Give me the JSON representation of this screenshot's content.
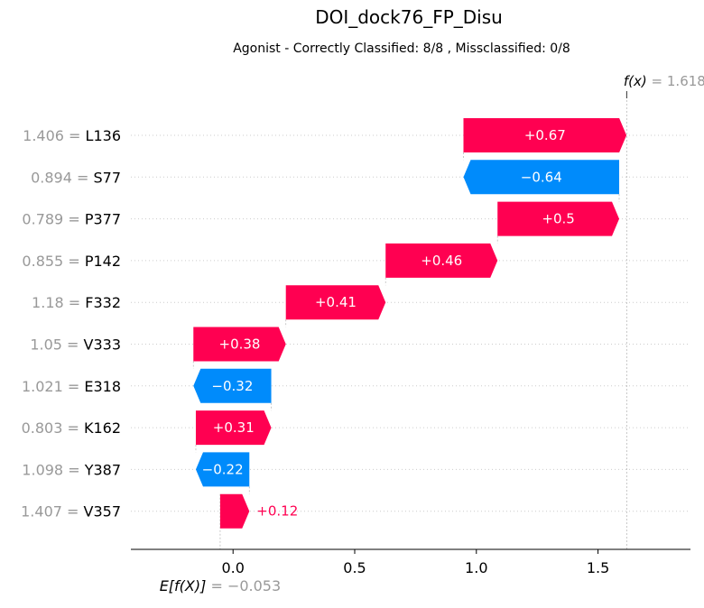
{
  "chart_data": {
    "type": "waterfall",
    "title": "DOI_dock76_FP_Disu",
    "subtitle": "Agonist - Correctly Classified: 8/8 , Missclassified: 0/8",
    "base_value": -0.053,
    "base_label": "E[f(X)] = −0.053",
    "final_value": 1.618,
    "final_label": "f(x) = 1.618",
    "xlim": [
      -0.42,
      1.88
    ],
    "xticks": [
      0.0,
      0.5,
      1.0,
      1.5
    ],
    "xtick_labels": [
      "0.0",
      "0.5",
      "1.0",
      "1.5"
    ],
    "features": [
      {
        "value_label": "1.406 =",
        "name": "L136",
        "contribution": 0.67,
        "label": "+0.67"
      },
      {
        "value_label": "0.894 =",
        "name": "S77",
        "contribution": -0.64,
        "label": "−0.64"
      },
      {
        "value_label": "0.789 =",
        "name": "P377",
        "contribution": 0.5,
        "label": "+0.5"
      },
      {
        "value_label": "0.855 =",
        "name": "P142",
        "contribution": 0.46,
        "label": "+0.46"
      },
      {
        "value_label": "1.18 =",
        "name": "F332",
        "contribution": 0.41,
        "label": "+0.41"
      },
      {
        "value_label": "1.05 =",
        "name": "V333",
        "contribution": 0.38,
        "label": "+0.38"
      },
      {
        "value_label": "1.021 =",
        "name": "E318",
        "contribution": -0.32,
        "label": "−0.32"
      },
      {
        "value_label": "0.803 =",
        "name": "K162",
        "contribution": 0.31,
        "label": "+0.31"
      },
      {
        "value_label": "1.098 =",
        "name": "Y387",
        "contribution": -0.22,
        "label": "−0.22"
      },
      {
        "value_label": "1.407 =",
        "name": "V357",
        "contribution": 0.12,
        "label": "+0.12"
      }
    ],
    "colors": {
      "positive": "#ff0051",
      "negative": "#008bfb",
      "muted": "#999999",
      "text": "#000000"
    }
  }
}
